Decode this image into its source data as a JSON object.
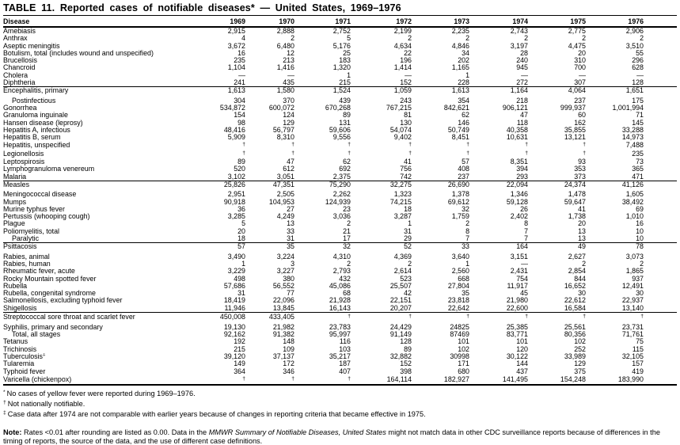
{
  "title": "TABLE 11. Reported cases of notifiable diseases* — United States, 1969–1976",
  "columns": [
    "Disease",
    "1969",
    "1970",
    "1971",
    "1972",
    "1973",
    "1974",
    "1975",
    "1976"
  ],
  "sections": [
    {
      "rows": [
        {
          "name": "Amebiasis",
          "values": [
            "2,915",
            "2,888",
            "2,752",
            "2,199",
            "2,235",
            "2,743",
            "2,775",
            "2,906"
          ]
        },
        {
          "name": "Anthrax",
          "values": [
            "4",
            "2",
            "5",
            "2",
            "2",
            "2",
            "2",
            "2"
          ]
        },
        {
          "name": "Aseptic meningitis",
          "values": [
            "3,672",
            "6,480",
            "5,176",
            "4,634",
            "4,846",
            "3,197",
            "4,475",
            "3,510"
          ]
        },
        {
          "name": "Botulism, total (includes wound and unspecified)",
          "values": [
            "16",
            "12",
            "25",
            "22",
            "34",
            "28",
            "20",
            "55"
          ]
        },
        {
          "name": "Brucellosis",
          "values": [
            "235",
            "213",
            "183",
            "196",
            "202",
            "240",
            "310",
            "296"
          ]
        },
        {
          "name": "Chancroid",
          "values": [
            "1,104",
            "1,416",
            "1,320",
            "1,414",
            "1,165",
            "945",
            "700",
            "628"
          ]
        },
        {
          "name": "Cholera",
          "values": [
            "—",
            "—",
            "1",
            "—",
            "1",
            "—",
            "—",
            "—"
          ]
        },
        {
          "name": "Diphtheria",
          "values": [
            "241",
            "435",
            "215",
            "152",
            "228",
            "272",
            "307",
            "128"
          ]
        }
      ]
    },
    {
      "rows": [
        {
          "name": "Encephalitis, primary",
          "values": [
            "1,613",
            "1,580",
            "1,524",
            "1,059",
            "1,613",
            "1,164",
            "4,064",
            "1,651"
          ]
        },
        {
          "name": "Postinfectious",
          "indent": true,
          "values": [
            "304",
            "370",
            "439",
            "243",
            "354",
            "218",
            "237",
            "175"
          ]
        },
        {
          "name": "Gonorrhea",
          "values": [
            "534,872",
            "600,072",
            "670,268",
            "767,215",
            "842,621",
            "906,121",
            "999,937",
            "1,001,994"
          ]
        },
        {
          "name": "Granuloma inguinale",
          "values": [
            "154",
            "124",
            "89",
            "81",
            "62",
            "47",
            "60",
            "71"
          ]
        },
        {
          "name": "Hansen disease (leprosy)",
          "values": [
            "98",
            "129",
            "131",
            "130",
            "146",
            "118",
            "162",
            "145"
          ]
        },
        {
          "name": "Hepatitis A, infectious",
          "values": [
            "48,416",
            "56,797",
            "59,606",
            "54,074",
            "50,749",
            "40,358",
            "35,855",
            "33,288"
          ]
        },
        {
          "name": "Hepatitis B, serum",
          "values": [
            "5,909",
            "8,310",
            "9,556",
            "9,402",
            "8,451",
            "10,631",
            "13,121",
            "14,973"
          ]
        },
        {
          "name": "Hepatitis, unspecified",
          "values": [
            "†",
            "†",
            "†",
            "†",
            "†",
            "†",
            "†",
            "7,488"
          ]
        },
        {
          "name": "Legionellosis",
          "values": [
            "†",
            "†",
            "†",
            "†",
            "†",
            "†",
            "†",
            "235"
          ]
        },
        {
          "name": "Leptospirosis",
          "values": [
            "89",
            "47",
            "62",
            "41",
            "57",
            "8,351",
            "93",
            "73"
          ]
        },
        {
          "name": "Lymphogranuloma venereum",
          "values": [
            "520",
            "612",
            "692",
            "756",
            "408",
            "394",
            "353",
            "365"
          ]
        },
        {
          "name": "Malaria",
          "values": [
            "3,102",
            "3,051",
            "2,375",
            "742",
            "237",
            "293",
            "373",
            "471"
          ]
        }
      ]
    },
    {
      "rows": [
        {
          "name": "Measles",
          "values": [
            "25,826",
            "47,351",
            "75,290",
            "32,275",
            "26,690",
            "22,094",
            "24,374",
            "41,126"
          ]
        },
        {
          "name": "Meningococcal disease",
          "values": [
            "2,951",
            "2,505",
            "2,262",
            "1,323",
            "1,378",
            "1,346",
            "1,478",
            "1,605"
          ]
        },
        {
          "name": "Mumps",
          "values": [
            "90,918",
            "104,953",
            "124,939",
            "74,215",
            "69,612",
            "59,128",
            "59,647",
            "38,492"
          ]
        },
        {
          "name": "Murine typhus fever",
          "values": [
            "36",
            "27",
            "23",
            "18",
            "32",
            "26",
            "41",
            "69"
          ]
        },
        {
          "name": "Pertussis (whooping cough)",
          "values": [
            "3,285",
            "4,249",
            "3,036",
            "3,287",
            "1,759",
            "2,402",
            "1,738",
            "1,010"
          ]
        },
        {
          "name": "Plague",
          "values": [
            "5",
            "13",
            "2",
            "1",
            "2",
            "8",
            "20",
            "16"
          ]
        },
        {
          "name": "Poliomyelitis, total",
          "values": [
            "20",
            "33",
            "21",
            "31",
            "8",
            "7",
            "13",
            "10"
          ]
        },
        {
          "name": "Paralytic",
          "indent": true,
          "values": [
            "18",
            "31",
            "17",
            "29",
            "7",
            "7",
            "13",
            "10"
          ]
        }
      ]
    },
    {
      "rows": [
        {
          "name": "Psittacosis",
          "values": [
            "57",
            "35",
            "32",
            "52",
            "33",
            "164",
            "49",
            "78"
          ]
        },
        {
          "name": "Rabies, animal",
          "values": [
            "3,490",
            "3,224",
            "4,310",
            "4,369",
            "3,640",
            "3,151",
            "2,627",
            "3,073"
          ]
        },
        {
          "name": "Rabies, human",
          "values": [
            "1",
            "3",
            "2",
            "2",
            "1",
            "—",
            "2",
            "2"
          ]
        },
        {
          "name": "Rheumatic fever, acute",
          "values": [
            "3,229",
            "3,227",
            "2,793",
            "2,614",
            "2,560",
            "2,431",
            "2,854",
            "1,865"
          ]
        },
        {
          "name": "Rocky Mountain spotted fever",
          "values": [
            "498",
            "380",
            "432",
            "523",
            "668",
            "754",
            "844",
            "937"
          ]
        },
        {
          "name": "Rubella",
          "values": [
            "57,686",
            "56,552",
            "45,086",
            "25,507",
            "27,804",
            "11,917",
            "16,652",
            "12,491"
          ]
        },
        {
          "name": "Rubella, congenital syndrome",
          "values": [
            "31",
            "77",
            "68",
            "42",
            "35",
            "45",
            "30",
            "30"
          ]
        },
        {
          "name": "Salmonellosis, excluding typhoid fever",
          "values": [
            "18,419",
            "22,096",
            "21,928",
            "22,151",
            "23,818",
            "21,980",
            "22,612",
            "22,937"
          ]
        },
        {
          "name": "Shigellosis",
          "values": [
            "11,946",
            "13,845",
            "16,143",
            "20,207",
            "22,642",
            "22,600",
            "16,584",
            "13,140"
          ]
        }
      ]
    },
    {
      "rows": [
        {
          "name": "Streptococcal sore throat and scarlet fever",
          "values": [
            "450,008",
            "433,405",
            "†",
            "†",
            "†",
            "†",
            "†",
            "†"
          ]
        },
        {
          "name": "Syphilis, primary and secondary",
          "values": [
            "19,130",
            "21,982",
            "23,783",
            "24,429",
            "24825",
            "25,385",
            "25,561",
            "23,731"
          ]
        },
        {
          "name": "Total, all stages",
          "indent": true,
          "values": [
            "92,162",
            "91,382",
            "95,997",
            "91,149",
            "87469",
            "83,771",
            "80,356",
            "71,761"
          ]
        },
        {
          "name": "Tetanus",
          "values": [
            "192",
            "148",
            "116",
            "128",
            "101",
            "101",
            "102",
            "75"
          ]
        },
        {
          "name": "Trichinosis",
          "values": [
            "215",
            "109",
            "103",
            "89",
            "102",
            "120",
            "252",
            "115"
          ]
        },
        {
          "name": "Tuberculosis",
          "sup": "‡",
          "values": [
            "39,120",
            "37,137",
            "35,217",
            "32,882",
            "30998",
            "30,122",
            "33,989",
            "32,105"
          ]
        },
        {
          "name": "Tularemia",
          "values": [
            "149",
            "172",
            "187",
            "152",
            "171",
            "144",
            "129",
            "157"
          ]
        },
        {
          "name": "Typhoid fever",
          "values": [
            "364",
            "346",
            "407",
            "398",
            "680",
            "437",
            "375",
            "419"
          ]
        },
        {
          "name": "Varicella (chickenpox)",
          "values": [
            "†",
            "†",
            "†",
            "164,114",
            "182,927",
            "141,495",
            "154,248",
            "183,990"
          ]
        }
      ]
    }
  ],
  "footnotes": [
    {
      "marker": "*",
      "text": "No cases of yellow fever were reported during 1969–1976."
    },
    {
      "marker": "†",
      "text": "Not nationally notifiable."
    },
    {
      "marker": "‡",
      "text": "Case data after 1974 are not comparable with earlier years because of changes in reporting criteria that became effective in 1975."
    }
  ],
  "note": {
    "label": "Note:",
    "pre_italic": " Rates <0.01 after rounding are listed as 0.00. Data in the ",
    "italic": "MMWR Summary of Notifiable Diseases, United States",
    "post_italic": " might not match data in other CDC surveillance reports because of differences in the timing of reports, the source of the data, and the use of different case definitions."
  }
}
